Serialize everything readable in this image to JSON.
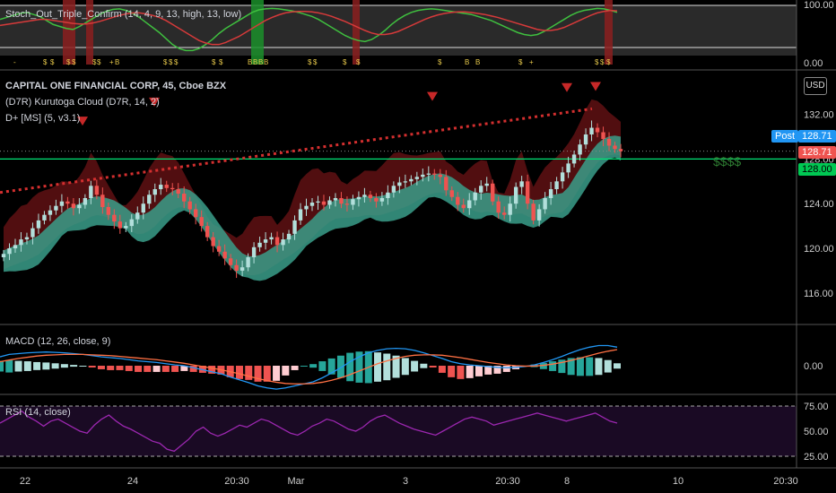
{
  "panels": {
    "stoch": {
      "title": "Stoch_Out_Triple_Confirm (14, 4, 9, 13, high, 13, low)",
      "yticks": [
        "100.00",
        "0.00"
      ]
    },
    "main": {
      "title": "CAPITAL ONE FINANCIAL CORP, 45, Cboe BZX",
      "indicator1": "(D7R) Kurutoga Cloud (D7R, 14, 2)",
      "indicator2": "D+ [MS] (5, v3.1)",
      "yticks": [
        "132.00",
        "128.00",
        "124.00",
        "120.00",
        "116.00"
      ],
      "currency": "USD",
      "post_label": "Post",
      "post_price": "128.71",
      "last_price": "128.71",
      "level_price": "128.00",
      "dollar_marker": "$$$$"
    },
    "macd": {
      "title": "MACD (12, 26, close, 9)",
      "yticks": [
        "0.00"
      ]
    },
    "rsi": {
      "title": "RSI (14, close)",
      "yticks": [
        "75.00",
        "50.00",
        "25.00"
      ]
    }
  },
  "xaxis": {
    "ticks": [
      "22",
      "24",
      "20:30",
      "Mar",
      "3",
      "20:30",
      "8",
      "10",
      "20:30"
    ]
  },
  "colors": {
    "bull": "#26a69a",
    "bear": "#ef5350",
    "signal_green": "#4caf50",
    "signal_red": "#e53935",
    "rsi": "#9c27b0",
    "level": "#00e676",
    "post": "#2196f3"
  },
  "chart_data": [
    {
      "type": "candlestick",
      "title": "CAPITAL ONE FINANCIAL CORP, 45, Cboe BZX",
      "ylim": [
        113.5,
        135.5
      ],
      "horizontal_level": 128.0,
      "close": [
        119.5,
        120.0,
        120.3,
        120.8,
        121.0,
        121.8,
        122.5,
        123.0,
        123.4,
        123.8,
        124.2,
        124.0,
        123.6,
        123.9,
        124.5,
        125.6,
        124.8,
        123.7,
        123.0,
        122.4,
        121.8,
        122.0,
        122.6,
        123.2,
        124.0,
        124.8,
        125.3,
        125.7,
        125.4,
        125.3,
        124.9,
        124.2,
        123.5,
        122.8,
        122.0,
        121.0,
        120.2,
        119.7,
        119.1,
        118.5,
        118.0,
        118.3,
        119.2,
        120.1,
        120.5,
        120.8,
        121.0,
        120.3,
        120.8,
        121.3,
        122.5,
        123.5,
        123.8,
        124.1,
        124.2,
        123.9,
        124.3,
        124.5,
        124.0,
        123.9,
        124.4,
        124.6,
        124.8,
        124.5,
        124.2,
        124.5,
        125.0,
        125.6,
        125.9,
        126.0,
        126.2,
        126.4,
        126.6,
        126.7,
        126.6,
        126.4,
        125.2,
        124.6,
        123.9,
        123.6,
        124.3,
        125.0,
        125.6,
        125.8,
        124.2,
        123.2,
        123.0,
        124.0,
        125.5,
        126.0,
        124.0,
        122.5,
        123.5,
        124.5,
        125.3,
        126.0,
        126.8,
        127.6,
        128.4,
        129.3,
        130.2,
        130.8,
        130.4,
        129.8,
        129.2,
        128.9,
        128.7
      ],
      "series": [
        {
          "name": "MACD",
          "values": [
            0.22,
            0.28,
            0.3,
            0.32,
            0.33,
            0.34,
            0.33,
            0.32,
            0.3,
            0.28,
            0.25,
            0.22,
            0.2,
            0.18,
            0.15,
            0.12,
            0.1,
            0.08,
            0.05,
            0.02,
            0.0,
            -0.05,
            -0.1,
            -0.15,
            -0.2,
            -0.28,
            -0.35,
            -0.42,
            -0.5,
            -0.55,
            -0.58,
            -0.55,
            -0.5,
            -0.45,
            -0.4,
            -0.3,
            -0.18,
            -0.05,
            0.1,
            0.22,
            0.32,
            0.38,
            0.42,
            0.43,
            0.42,
            0.38,
            0.32,
            0.25,
            0.18,
            0.1,
            0.05,
            0.02,
            0.0,
            -0.02,
            -0.04,
            -0.05,
            -0.04,
            -0.02,
            0.02,
            0.08,
            0.15,
            0.23,
            0.32,
            0.4,
            0.46,
            0.5,
            0.5,
            0.46
          ]
        },
        {
          "name": "Signal",
          "values": [
            0.1,
            0.14,
            0.18,
            0.21,
            0.24,
            0.26,
            0.27,
            0.28,
            0.28,
            0.28,
            0.27,
            0.26,
            0.25,
            0.23,
            0.21,
            0.19,
            0.17,
            0.15,
            0.12,
            0.09,
            0.06,
            0.02,
            -0.02,
            -0.06,
            -0.1,
            -0.15,
            -0.2,
            -0.26,
            -0.32,
            -0.37,
            -0.41,
            -0.44,
            -0.45,
            -0.45,
            -0.44,
            -0.41,
            -0.36,
            -0.3,
            -0.22,
            -0.13,
            -0.04,
            0.05,
            0.12,
            0.18,
            0.23,
            0.26,
            0.27,
            0.27,
            0.26,
            0.23,
            0.2,
            0.16,
            0.12,
            0.08,
            0.05,
            0.02,
            0.0,
            -0.01,
            -0.01,
            0.01,
            0.04,
            0.08,
            0.13,
            0.19,
            0.25,
            0.31,
            0.36,
            0.4
          ]
        },
        {
          "name": "RSI",
          "values": [
            58,
            62,
            66,
            70,
            64,
            60,
            55,
            60,
            62,
            58,
            54,
            50,
            48,
            56,
            62,
            66,
            60,
            55,
            52,
            48,
            44,
            40,
            38,
            32,
            30,
            36,
            42,
            50,
            54,
            48,
            45,
            48,
            52,
            56,
            54,
            58,
            62,
            60,
            56,
            52,
            48,
            46,
            50,
            55,
            58,
            62,
            60,
            56,
            52,
            50,
            54,
            60,
            64,
            66,
            62,
            58,
            55,
            52,
            50,
            48,
            46,
            50,
            54,
            58,
            62,
            64,
            62,
            60,
            56,
            58,
            60,
            62,
            64,
            66,
            68,
            66,
            64,
            62,
            60,
            62,
            64,
            66,
            68,
            64,
            60,
            58
          ]
        }
      ]
    },
    {
      "type": "line",
      "title": "Stoch_Out_Triple_Confirm (14, 4, 9, 13, high, 13, low)",
      "ylim": [
        0,
        100
      ],
      "series": [
        {
          "name": "K",
          "values": [
            72,
            76,
            80,
            84,
            86,
            82,
            78,
            70,
            62,
            58,
            54,
            52,
            58,
            66,
            74,
            82,
            88,
            92,
            93,
            90,
            84,
            76,
            66,
            56,
            46,
            34,
            22,
            14,
            10,
            10,
            14,
            22,
            32,
            44,
            54,
            62,
            70,
            78,
            86,
            91,
            93,
            94,
            93,
            91,
            89,
            86,
            82,
            78,
            72,
            64,
            56,
            48,
            40,
            34,
            30,
            28,
            32,
            40,
            50,
            62,
            72,
            80,
            86,
            90,
            92,
            93,
            92,
            90,
            88,
            86,
            84,
            82,
            78,
            74,
            70,
            64,
            58,
            52,
            46,
            42,
            40,
            42,
            48,
            56,
            64,
            72,
            80,
            86,
            90,
            92,
            94,
            93,
            90,
            86
          ]
        },
        {
          "name": "D",
          "values": [
            60,
            62,
            64,
            66,
            68,
            70,
            72,
            72,
            70,
            68,
            66,
            64,
            63,
            63,
            65,
            68,
            72,
            76,
            80,
            83,
            85,
            85,
            83,
            80,
            76,
            70,
            62,
            54,
            46,
            38,
            30,
            25,
            22,
            22,
            26,
            32,
            38,
            46,
            54,
            62,
            70,
            76,
            81,
            85,
            87,
            88,
            88,
            87,
            85,
            82,
            78,
            73,
            68,
            62,
            56,
            50,
            45,
            42,
            42,
            44,
            48,
            54,
            60,
            66,
            72,
            77,
            81,
            84,
            86,
            87,
            87,
            86,
            84,
            82,
            79,
            76,
            72,
            68,
            64,
            60,
            56,
            52,
            50,
            50,
            52,
            56,
            62,
            68,
            74,
            80,
            85,
            88,
            90,
            89
          ]
        }
      ]
    }
  ]
}
